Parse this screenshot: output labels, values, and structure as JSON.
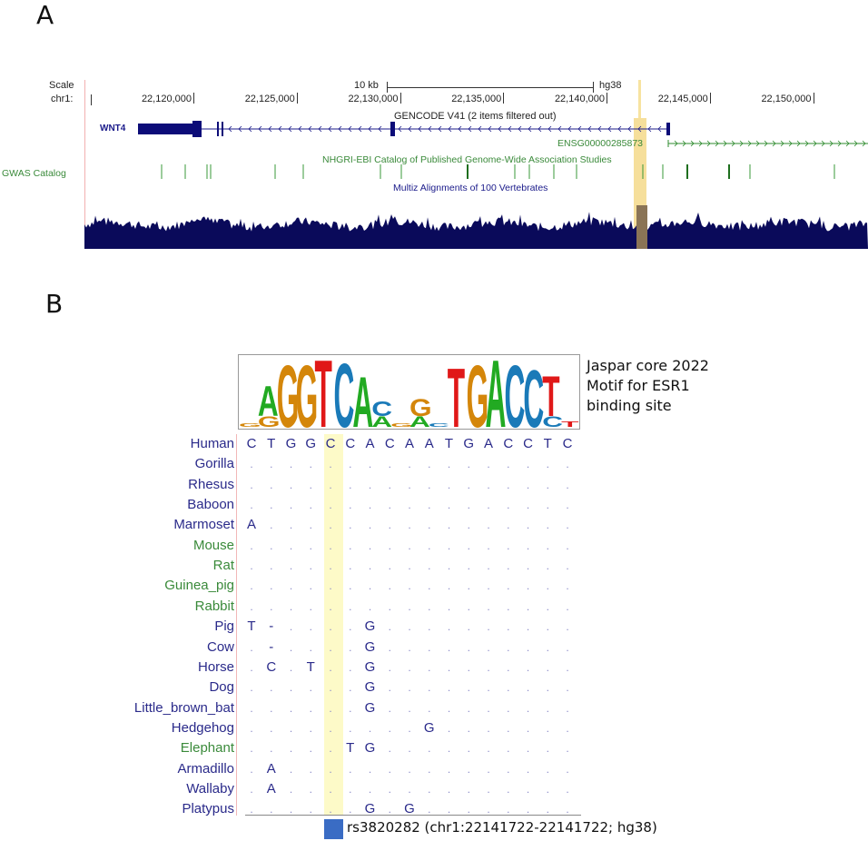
{
  "panels": {
    "a": {
      "letter": "A",
      "scale_label": "Scale",
      "scale_text": "10 kb",
      "assembly": "hg38",
      "chrom_label": "chr1:",
      "ticks": [
        "22,120,000",
        "22,125,000",
        "22,130,000",
        "22,135,000",
        "22,140,000",
        "22,145,000",
        "22,150,000"
      ],
      "tick_positions_kb": [
        22120,
        22125,
        22130,
        22135,
        22140,
        22145,
        22150
      ],
      "gencode_title": "GENCODE V41 (2 items filtered out)",
      "gene1": "WNT4",
      "gene2": "ENSG00000285873",
      "gwas_track_label": "GWAS Catalog",
      "gwas_title": "NHGRI-EBI Catalog of Published Genome-Wide Association Studies",
      "multiz_title": "Multiz Alignments of 100 Vertebrates",
      "colors": {
        "gene": "#0c0c78",
        "gwas": "#2e8b2e",
        "conservation": "#0a0a5a",
        "highlight": "#f7dc8a"
      }
    },
    "b": {
      "letter": "B",
      "motif_caption": [
        "Jaspar core 2022",
        "Motif for ESR1",
        "binding site"
      ],
      "highlight_column": 5,
      "rows": [
        {
          "species": "Human",
          "color": "navy",
          "seq": [
            "C",
            "T",
            "G",
            "G",
            "C",
            "C",
            "A",
            "C",
            "A",
            "A",
            "T",
            "G",
            "A",
            "C",
            "C",
            "T",
            "C"
          ]
        },
        {
          "species": "Gorilla",
          "color": "navy",
          "seq": [
            ".",
            ".",
            ".",
            ".",
            ".",
            ".",
            ".",
            ".",
            ".",
            ".",
            ".",
            ".",
            ".",
            ".",
            ".",
            ".",
            "."
          ]
        },
        {
          "species": "Rhesus",
          "color": "navy",
          "seq": [
            ".",
            ".",
            ".",
            ".",
            ".",
            ".",
            ".",
            ".",
            ".",
            ".",
            ".",
            ".",
            ".",
            ".",
            ".",
            ".",
            "."
          ]
        },
        {
          "species": "Baboon",
          "color": "navy",
          "seq": [
            ".",
            ".",
            ".",
            ".",
            ".",
            ".",
            ".",
            ".",
            ".",
            ".",
            ".",
            ".",
            ".",
            ".",
            ".",
            ".",
            "."
          ]
        },
        {
          "species": "Marmoset",
          "color": "navy",
          "seq": [
            "A",
            ".",
            ".",
            ".",
            ".",
            ".",
            ".",
            ".",
            ".",
            ".",
            ".",
            ".",
            ".",
            ".",
            ".",
            ".",
            "."
          ]
        },
        {
          "species": "Mouse",
          "color": "green",
          "seq": [
            ".",
            ".",
            ".",
            ".",
            ".",
            ".",
            ".",
            ".",
            ".",
            ".",
            ".",
            ".",
            ".",
            ".",
            ".",
            ".",
            "."
          ]
        },
        {
          "species": "Rat",
          "color": "green",
          "seq": [
            ".",
            ".",
            ".",
            ".",
            ".",
            ".",
            ".",
            ".",
            ".",
            ".",
            ".",
            ".",
            ".",
            ".",
            ".",
            ".",
            "."
          ]
        },
        {
          "species": "Guinea_pig",
          "color": "green",
          "seq": [
            ".",
            ".",
            ".",
            ".",
            ".",
            ".",
            ".",
            ".",
            ".",
            ".",
            ".",
            ".",
            ".",
            ".",
            ".",
            ".",
            "."
          ]
        },
        {
          "species": "Rabbit",
          "color": "green",
          "seq": [
            ".",
            ".",
            ".",
            ".",
            ".",
            ".",
            ".",
            ".",
            ".",
            ".",
            ".",
            ".",
            ".",
            ".",
            ".",
            ".",
            "."
          ]
        },
        {
          "species": "Pig",
          "color": "navy",
          "seq": [
            "T",
            "-",
            ".",
            ".",
            ".",
            ".",
            "G",
            ".",
            ".",
            ".",
            ".",
            ".",
            ".",
            ".",
            ".",
            ".",
            "."
          ]
        },
        {
          "species": "Cow",
          "color": "navy",
          "seq": [
            ".",
            "-",
            ".",
            ".",
            ".",
            ".",
            "G",
            ".",
            ".",
            ".",
            ".",
            ".",
            ".",
            ".",
            ".",
            ".",
            "."
          ]
        },
        {
          "species": "Horse",
          "color": "navy",
          "seq": [
            ".",
            "C",
            ".",
            "T",
            ".",
            ".",
            "G",
            ".",
            ".",
            ".",
            ".",
            ".",
            ".",
            ".",
            ".",
            ".",
            "."
          ]
        },
        {
          "species": "Dog",
          "color": "navy",
          "seq": [
            ".",
            ".",
            ".",
            ".",
            ".",
            ".",
            "G",
            ".",
            ".",
            ".",
            ".",
            ".",
            ".",
            ".",
            ".",
            ".",
            "."
          ]
        },
        {
          "species": "Little_brown_bat",
          "color": "navy",
          "seq": [
            ".",
            ".",
            ".",
            ".",
            ".",
            ".",
            "G",
            ".",
            ".",
            ".",
            ".",
            ".",
            ".",
            ".",
            ".",
            ".",
            "."
          ]
        },
        {
          "species": "Hedgehog",
          "color": "navy",
          "seq": [
            ".",
            ".",
            ".",
            ".",
            ".",
            ".",
            ".",
            ".",
            ".",
            "G",
            ".",
            ".",
            ".",
            ".",
            ".",
            ".",
            "."
          ]
        },
        {
          "species": "Elephant",
          "color": "green",
          "seq": [
            ".",
            ".",
            ".",
            ".",
            ".",
            "T",
            "G",
            ".",
            ".",
            ".",
            ".",
            ".",
            ".",
            ".",
            ".",
            ".",
            "."
          ]
        },
        {
          "species": "Armadillo",
          "color": "navy",
          "seq": [
            ".",
            "A",
            ".",
            ".",
            ".",
            ".",
            ".",
            ".",
            ".",
            ".",
            ".",
            ".",
            ".",
            ".",
            ".",
            ".",
            "."
          ]
        },
        {
          "species": "Wallaby",
          "color": "navy",
          "seq": [
            ".",
            "A",
            ".",
            ".",
            ".",
            ".",
            ".",
            ".",
            ".",
            ".",
            ".",
            ".",
            ".",
            ".",
            ".",
            ".",
            "."
          ]
        },
        {
          "species": "Platypus",
          "color": "navy",
          "seq": [
            ".",
            ".",
            ".",
            ".",
            ".",
            ".",
            "G",
            ".",
            "G",
            ".",
            ".",
            ".",
            ".",
            ".",
            ".",
            ".",
            "."
          ]
        }
      ],
      "logo": [
        {
          "letter": "G",
          "height": 0.05
        },
        {
          "letter": "A",
          "height": 0.45,
          "sub": "G"
        },
        {
          "letter": "G",
          "height": 0.92
        },
        {
          "letter": "G",
          "height": 0.92
        },
        {
          "letter": "T",
          "height": 1.0
        },
        {
          "letter": "C",
          "height": 0.95
        },
        {
          "letter": "A",
          "height": 0.75
        },
        {
          "letter": "C",
          "height": 0.22,
          "sub": "A"
        },
        {
          "letter": "G",
          "height": 0.05
        },
        {
          "letter": "G",
          "height": 0.25,
          "sub": "A"
        },
        {
          "letter": "C",
          "height": 0.05
        },
        {
          "letter": "T",
          "height": 0.88
        },
        {
          "letter": "G",
          "height": 0.92
        },
        {
          "letter": "A",
          "height": 1.0
        },
        {
          "letter": "C",
          "height": 0.92
        },
        {
          "letter": "C",
          "height": 0.85
        },
        {
          "letter": "T",
          "height": 0.6,
          "sub": "C"
        },
        {
          "letter": "T",
          "height": 0.08
        }
      ],
      "logo_colors": {
        "A": "#22aa22",
        "C": "#1a7ab8",
        "G": "#d4860a",
        "T": "#e01818"
      },
      "snp": {
        "label": "rs3820282 (chr1:22141722-22141722; hg38)",
        "color": "#3a6cc4"
      }
    }
  }
}
